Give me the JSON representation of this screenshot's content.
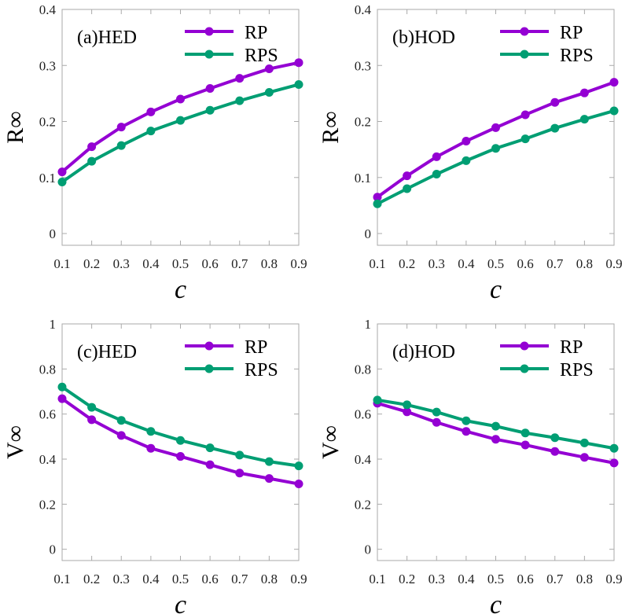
{
  "colors": {
    "RP": "#9400D3",
    "RPS": "#009E73",
    "frame": "#aaaaaa"
  },
  "chart_data": [
    {
      "type": "line",
      "panel_label": "(a)HED",
      "xlabel": "c",
      "ylabel": "R∞",
      "x": [
        0.1,
        0.2,
        0.3,
        0.4,
        0.5,
        0.6,
        0.7,
        0.8,
        0.9
      ],
      "xticks": [
        "0.1",
        "0.2",
        "0.3",
        "0.4",
        "0.5",
        "0.6",
        "0.7",
        "0.8",
        "0.9"
      ],
      "yticks": [
        "0",
        "0.1",
        "0.2",
        "0.3",
        "0.4"
      ],
      "ytick_values": [
        0,
        0.1,
        0.2,
        0.3,
        0.4
      ],
      "ylim": [
        -0.021,
        0.4
      ],
      "legend": "top-right",
      "series": [
        {
          "name": "RP",
          "values": [
            0.11,
            0.155,
            0.19,
            0.217,
            0.24,
            0.259,
            0.277,
            0.294,
            0.305
          ]
        },
        {
          "name": "RPS",
          "values": [
            0.092,
            0.129,
            0.157,
            0.183,
            0.202,
            0.22,
            0.237,
            0.252,
            0.266
          ]
        }
      ]
    },
    {
      "type": "line",
      "panel_label": "(b)HOD",
      "xlabel": "c",
      "ylabel": "R∞",
      "x": [
        0.1,
        0.2,
        0.3,
        0.4,
        0.5,
        0.6,
        0.7,
        0.8,
        0.9
      ],
      "xticks": [
        "0.1",
        "0.2",
        "0.3",
        "0.4",
        "0.5",
        "0.6",
        "0.7",
        "0.8",
        "0.9"
      ],
      "yticks": [
        "0",
        "0.1",
        "0.2",
        "0.3",
        "0.4"
      ],
      "ytick_values": [
        0,
        0.1,
        0.2,
        0.3,
        0.4
      ],
      "ylim": [
        -0.021,
        0.4
      ],
      "legend": "top-right",
      "series": [
        {
          "name": "RP",
          "values": [
            0.065,
            0.103,
            0.137,
            0.165,
            0.189,
            0.212,
            0.234,
            0.251,
            0.27
          ]
        },
        {
          "name": "RPS",
          "values": [
            0.053,
            0.08,
            0.106,
            0.13,
            0.152,
            0.169,
            0.188,
            0.204,
            0.219
          ]
        }
      ]
    },
    {
      "type": "line",
      "panel_label": "(c)HED",
      "xlabel": "c",
      "ylabel": "V∞",
      "x": [
        0.1,
        0.2,
        0.3,
        0.4,
        0.5,
        0.6,
        0.7,
        0.8,
        0.9
      ],
      "xticks": [
        "0.1",
        "0.2",
        "0.3",
        "0.4",
        "0.5",
        "0.6",
        "0.7",
        "0.8",
        "0.9"
      ],
      "yticks": [
        "0",
        "0.2",
        "0.4",
        "0.6",
        "0.8",
        "1"
      ],
      "ytick_values": [
        0,
        0.2,
        0.4,
        0.6,
        0.8,
        1
      ],
      "ylim": [
        -0.05,
        1
      ],
      "legend": "top-right",
      "series": [
        {
          "name": "RP",
          "values": [
            0.668,
            0.575,
            0.505,
            0.448,
            0.412,
            0.375,
            0.338,
            0.314,
            0.29
          ]
        },
        {
          "name": "RPS",
          "values": [
            0.72,
            0.63,
            0.572,
            0.523,
            0.483,
            0.45,
            0.418,
            0.389,
            0.37
          ]
        }
      ]
    },
    {
      "type": "line",
      "panel_label": "(d)HOD",
      "xlabel": "c",
      "ylabel": "V∞",
      "x": [
        0.1,
        0.2,
        0.3,
        0.4,
        0.5,
        0.6,
        0.7,
        0.8,
        0.9
      ],
      "xticks": [
        "0.1",
        "0.2",
        "0.3",
        "0.4",
        "0.5",
        "0.6",
        "0.7",
        "0.8",
        "0.9"
      ],
      "yticks": [
        "0",
        "0.2",
        "0.4",
        "0.6",
        "0.8",
        "1"
      ],
      "ytick_values": [
        0,
        0.2,
        0.4,
        0.6,
        0.8,
        1
      ],
      "ylim": [
        -0.05,
        1
      ],
      "legend": "top-right",
      "series": [
        {
          "name": "RP",
          "values": [
            0.648,
            0.61,
            0.563,
            0.523,
            0.488,
            0.463,
            0.434,
            0.408,
            0.383
          ]
        },
        {
          "name": "RPS",
          "values": [
            0.662,
            0.641,
            0.609,
            0.57,
            0.546,
            0.516,
            0.495,
            0.472,
            0.448
          ]
        }
      ]
    }
  ]
}
